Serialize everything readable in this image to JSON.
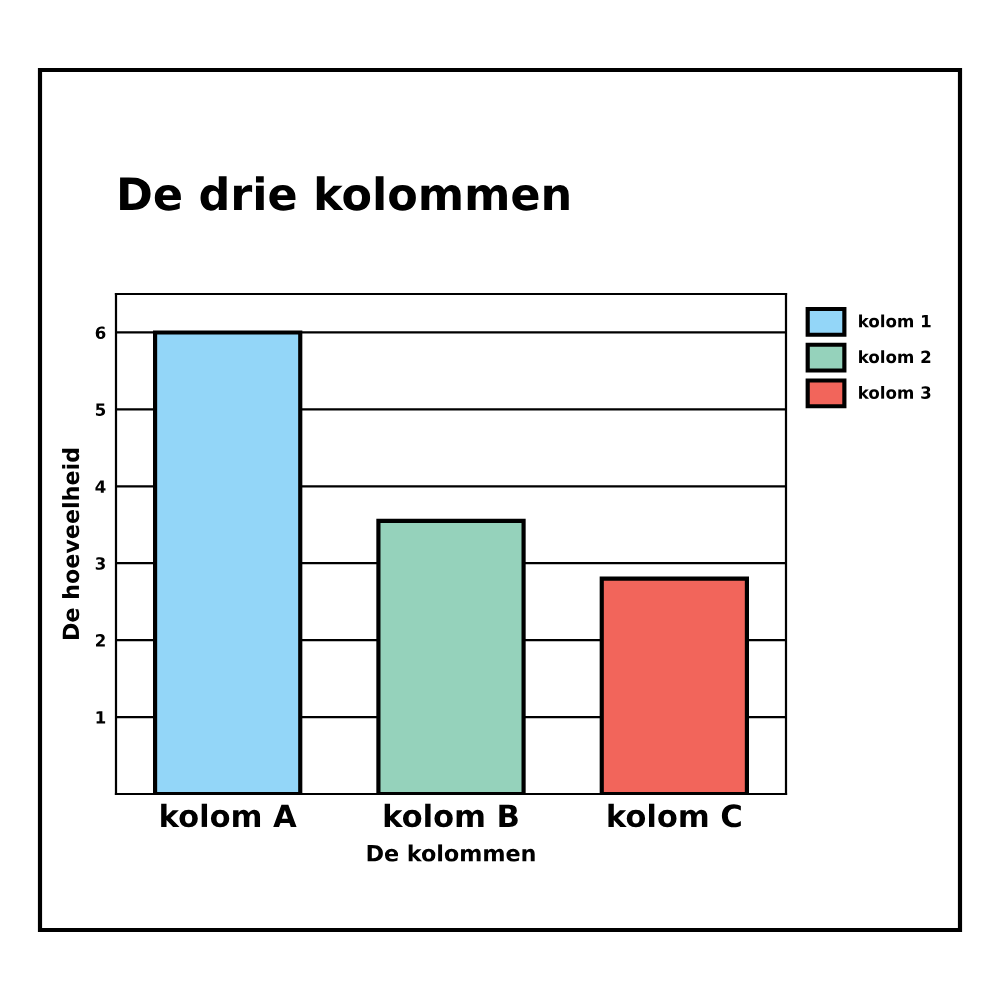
{
  "chart_data": {
    "type": "bar",
    "title": "De drie kolommen",
    "xlabel": "De kolommen",
    "ylabel": "De hoeveelheid",
    "categories": [
      "kolom A",
      "kolom B",
      "kolom C"
    ],
    "series": [
      {
        "name": "kolom 1",
        "color": "#93d6f8",
        "values": [
          6,
          null,
          null
        ]
      },
      {
        "name": "kolom 2",
        "color": "#95d2bb",
        "values": [
          null,
          3.55,
          null
        ]
      },
      {
        "name": "kolom 3",
        "color": "#f2655b",
        "values": [
          null,
          null,
          2.8
        ]
      }
    ],
    "ylim": [
      0,
      6.5
    ],
    "yticks": [
      1,
      2,
      3,
      4,
      5,
      6
    ],
    "grid": "y",
    "legend": "top right"
  }
}
